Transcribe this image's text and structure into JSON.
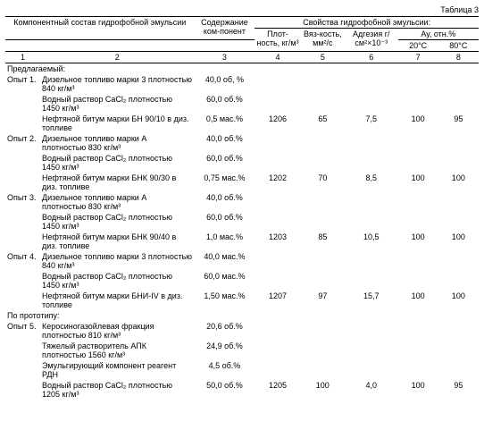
{
  "caption": "Таблица 3",
  "headers": {
    "col1_2": "Компонентный состав гидрофобной эмульсии",
    "col3": "Содержание ком-понент",
    "span48": "Свойства гидрофобной эмульсии:",
    "col4": "Плот-ность, кг/м³",
    "col5": "Вяз-кость, мм²/с",
    "col6": "Адгезия г/см²×10⁻³",
    "col78": "Ау, отн.%",
    "col7": "20°C",
    "col8": "80°C",
    "n1": "1",
    "n2": "2",
    "n3": "3",
    "n4": "4",
    "n5": "5",
    "n6": "6",
    "n7": "7",
    "n8": "8"
  },
  "section1": "Предлагаемый:",
  "section2": "По прототипу:",
  "experiments": [
    {
      "label": "Опыт 1.",
      "rows": [
        {
          "comp": "Дизельное топливо марки 3 плотностью 840 кг/м³",
          "content": "40,0 об, %"
        },
        {
          "comp": "Водный раствор CaCl₂ плотностью 1450 кг/м³",
          "content": "60,0 об.%"
        },
        {
          "comp": "Нефтяной битум марки БН 90/10 в диз. топливе",
          "content": "0,5 мас.%",
          "c4": "1206",
          "c5": "65",
          "c6": "7,5",
          "c7": "100",
          "c8": "95"
        }
      ]
    },
    {
      "label": "Опыт 2.",
      "rows": [
        {
          "comp": "Дизельное топливо марки А плотностью 830 кг/м³",
          "content": "40,0 об.%"
        },
        {
          "comp": "Водный раствор CaCl₂ плотностью 1450 кг/м³",
          "content": "60,0 об.%"
        },
        {
          "comp": "Нефтяной битум марки БНК 90/30 в диз. топливе",
          "content": "0,75 мас.%",
          "c4": "1202",
          "c5": "70",
          "c6": "8,5",
          "c7": "100",
          "c8": "100"
        }
      ]
    },
    {
      "label": "Опыт 3.",
      "rows": [
        {
          "comp": "Дизельное топливо марки А плотностью 830 кг/м³",
          "content": "40,0 об.%"
        },
        {
          "comp": "Водный раствор CaCl₂ плотностью 1450 кг/м³",
          "content": "60,0 об.%"
        },
        {
          "comp": "Нефтяной битум марки БНК 90/40 в диз. топливе",
          "content": "1,0 мас.%",
          "c4": "1203",
          "c5": "85",
          "c6": "10,5",
          "c7": "100",
          "c8": "100"
        }
      ]
    },
    {
      "label": "Опыт 4.",
      "rows": [
        {
          "comp": "Дизельное топливо марки 3 плотностью 840 кг/м³",
          "content": "40,0 мас.%"
        },
        {
          "comp": "Водный раствор CaCl₂ плотностью 1450 кг/м³",
          "content": "60,0 мас.%"
        },
        {
          "comp": "Нефтяной битум марки БНИ-IV в диз. топливе",
          "content": "1,50 мас.%",
          "c4": "1207",
          "c5": "97",
          "c6": "15,7",
          "c7": "100",
          "c8": "100"
        }
      ]
    }
  ],
  "prototype": {
    "label": "Опыт 5.",
    "rows": [
      {
        "comp": "Керосиногазойлевая фракция плотностью 810 кг/м³",
        "content": "20,6 об.%"
      },
      {
        "comp": "Тяжелый растворитель АПК плотностью 1560 кг/м³",
        "content": "24,9 об.%"
      },
      {
        "comp": "Эмульгирующий компонент реагент РДН",
        "content": "4,5 об.%"
      },
      {
        "comp": "Водный раствор CaCl₂ плотностью 1205 кг/м³",
        "content": "50,0 об.%",
        "c4": "1205",
        "c5": "100",
        "c6": "4,0",
        "c7": "100",
        "c8": "95"
      }
    ]
  }
}
